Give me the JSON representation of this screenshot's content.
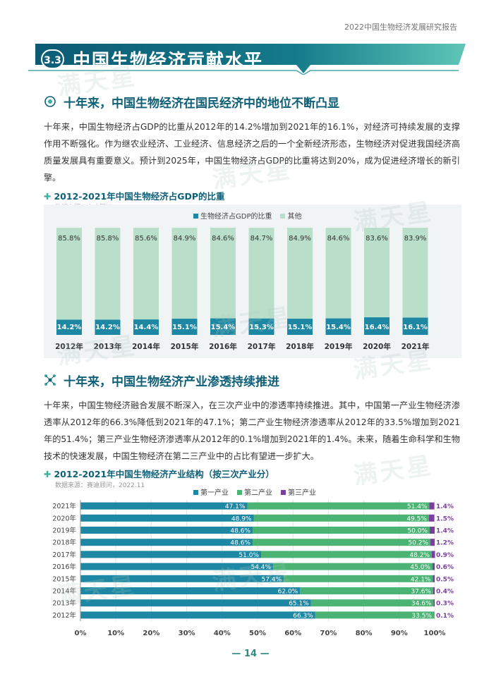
{
  "header": {
    "report_title": "2022中国生物经济发展研究报告"
  },
  "section": {
    "number": "3.3",
    "title": "中国生物经济贡献水平"
  },
  "watermark": "满天星",
  "part1": {
    "heading": "十年来，中国生物经济在国民经济中的地位不断凸显",
    "paragraph": "十年来，中国生物经济占GDP的比重从2012年的14.2%增加到2021年的16.1%，对经济可持续发展的支撑作用不断强化。作为继农业经济、工业经济、信息经济之后的一个全新经济形态，生物经济对促进我国经济高质量发展具有重要意义。预计到2025年，中国生物经济占GDP的比重将达到20%，成为促进经济增长的新引擎。",
    "chart_title": "2012-2021年中国生物经济占GDP的比重",
    "source": "数据来源：赛迪顾问，2022.11"
  },
  "part2": {
    "heading": "十年来，中国生物经济产业渗透持续推进",
    "paragraph": "十年来，中国生物经济融合发展不断深入，在三次产业中的渗透率持续推进。其中，中国第一产业生物经济渗透率从2012年的66.3%降低到2021年的47.1%；第二产业生物经济渗透率从2012年的33.5%增加到2021年的51.4%；第三产业生物经济渗透率从2012年的0.1%增加到2021年的1.4%。未来，随着生命科学和生物技术的快速发展，中国生物经济在第二三产业中的占比有望进一步扩大。",
    "chart_title": "2012-2021年中国生物经济产业结构（按三次产业分）",
    "source": "数据来源：赛迪顾问，2022.11"
  },
  "page_number": "— 14 —",
  "colors": {
    "teal_dark": "#0e5f78",
    "bar_dark": "#1e88a4",
    "bar_light": "#b9dfcb",
    "green": "#4bb374",
    "purple": "#7b3fa0"
  },
  "chart_data": [
    {
      "type": "bar",
      "stacked": true,
      "categories": [
        "2012年",
        "2013年",
        "2014年",
        "2015年",
        "2016年",
        "2017年",
        "2018年",
        "2019年",
        "2020年",
        "2021年"
      ],
      "series": [
        {
          "name": "生物经济占GDP的比重",
          "values": [
            14.2,
            14.2,
            14.4,
            15.1,
            15.4,
            15.3,
            15.1,
            15.4,
            16.4,
            16.1
          ],
          "labels": [
            "14.2%",
            "14.2%",
            "14.4%",
            "15.1%",
            "15.4%",
            "15.3%",
            "15.1%",
            "15.4%",
            "16.4%",
            "16.1%"
          ],
          "color": "#1e88a4"
        },
        {
          "name": "其他",
          "values": [
            85.8,
            85.8,
            85.6,
            84.9,
            84.6,
            84.7,
            84.9,
            84.6,
            83.6,
            83.9
          ],
          "labels": [
            "85.8%",
            "85.8%",
            "85.6%",
            "84.9%",
            "84.6%",
            "84.7%",
            "84.9%",
            "84.6%",
            "83.6%",
            "83.9%"
          ],
          "color": "#b9dfcb"
        }
      ],
      "ylim": [
        0,
        100
      ]
    },
    {
      "type": "bar",
      "orientation": "horizontal",
      "stacked": true,
      "categories": [
        "2021年",
        "2020年",
        "2019年",
        "2018年",
        "2017年",
        "2016年",
        "2015年",
        "2014年",
        "2013年",
        "2012年"
      ],
      "series": [
        {
          "name": "第一产业",
          "values": [
            47.1,
            48.9,
            48.6,
            48.6,
            51.0,
            54.4,
            57.4,
            62.0,
            65.1,
            66.3
          ],
          "labels": [
            "47.1%",
            "48.9%",
            "48.6%",
            "48.6%",
            "51.0%",
            "54.4%",
            "57.4%",
            "62.0%",
            "65.1%",
            "66.3%"
          ],
          "color": "#1e88a4"
        },
        {
          "name": "第二产业",
          "values": [
            51.4,
            49.5,
            50.0,
            50.2,
            48.2,
            45.0,
            42.1,
            37.6,
            34.6,
            33.5
          ],
          "labels": [
            "51.4%",
            "49.5%",
            "50.0%",
            "50.2%",
            "48.2%",
            "45.0%",
            "42.1%",
            "37.6%",
            "34.6%",
            "33.5%"
          ],
          "color": "#4bb374"
        },
        {
          "name": "第三产业",
          "values": [
            1.4,
            1.5,
            1.4,
            1.2,
            0.9,
            0.6,
            0.5,
            0.4,
            0.3,
            0.1
          ],
          "labels": [
            "1.4%",
            "1.5%",
            "1.4%",
            "1.2%",
            "0.9%",
            "0.6%",
            "0.5%",
            "0.4%",
            "0.3%",
            "0.1%"
          ],
          "color": "#7b3fa0"
        }
      ],
      "xticks": [
        "0%",
        "10%",
        "20%",
        "30%",
        "40%",
        "50%",
        "60%",
        "70%",
        "80%",
        "90%",
        "100%"
      ],
      "xlim": [
        0,
        100
      ]
    }
  ]
}
